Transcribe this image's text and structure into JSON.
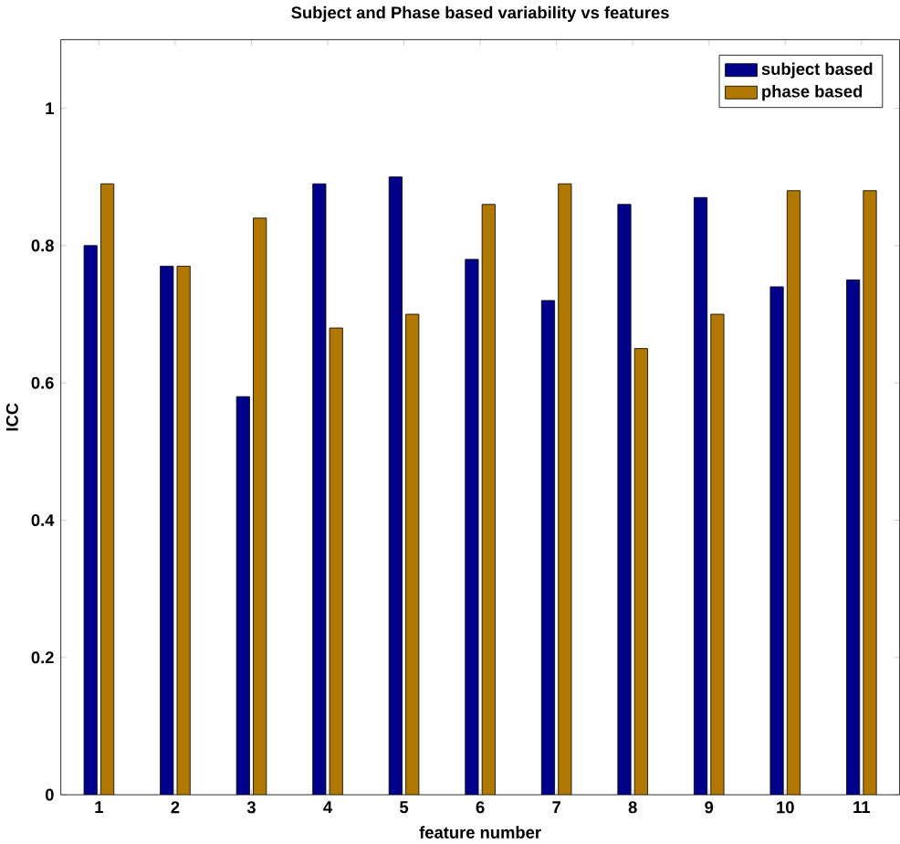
{
  "chart_data": {
    "type": "bar",
    "title": "Subject and Phase based variability vs features",
    "xlabel": "feature number",
    "ylabel": "ICC",
    "categories": [
      "1",
      "2",
      "3",
      "4",
      "5",
      "6",
      "7",
      "8",
      "9",
      "10",
      "11"
    ],
    "series": [
      {
        "name": "subject based",
        "color": "#00008b",
        "values": [
          0.8,
          0.77,
          0.58,
          0.89,
          0.9,
          0.78,
          0.72,
          0.86,
          0.87,
          0.74,
          0.75
        ]
      },
      {
        "name": "phase based",
        "color": "#b07800",
        "values": [
          0.89,
          0.77,
          0.84,
          0.68,
          0.7,
          0.86,
          0.89,
          0.65,
          0.7,
          0.88,
          0.88
        ]
      }
    ],
    "ylim": [
      0,
      1.1
    ],
    "yticks": [
      0,
      0.2,
      0.4,
      0.6,
      0.8,
      1
    ],
    "legend": "top right"
  }
}
